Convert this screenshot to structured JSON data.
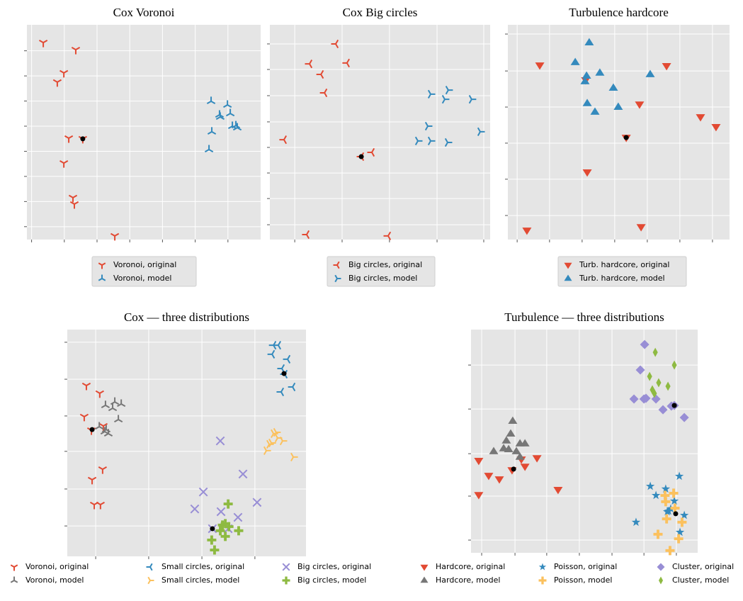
{
  "chart_data": [
    {
      "type": "scatter",
      "title": "Cox Voronoi",
      "xlim": [
        0,
        100
      ],
      "ylim": [
        0,
        100
      ],
      "xticks": [
        2,
        16,
        30,
        44,
        58,
        72,
        86
      ],
      "yticks": [
        6,
        17.7,
        29.4,
        41.1,
        52.8,
        64.5,
        76.2,
        87.9
      ],
      "grid": true,
      "legend": "below",
      "series": [
        {
          "name": "Voronoi, original",
          "color": "#E24A33",
          "marker": "tri_down",
          "x": [
            7.0,
            20.9,
            15.8,
            13.0,
            17.9,
            23.9,
            15.8,
            19.7,
            20.3,
            37.6
          ],
          "y": [
            91.7,
            88.4,
            77.6,
            73.3,
            47.2,
            46.9,
            35.6,
            19.5,
            16.5,
            1.7
          ]
        },
        {
          "name": "Voronoi, model",
          "color": "#348ABD",
          "marker": "tri_up",
          "x": [
            78.8,
            85.8,
            82.4,
            87.0,
            82.7,
            87.9,
            90.0,
            79.1,
            77.9,
            89.4
          ],
          "y": [
            64.4,
            62.7,
            58.1,
            58.7,
            57.1,
            52.8,
            52.1,
            50.2,
            41.9,
            53.1
          ]
        }
      ],
      "highlight": {
        "color": "#000000",
        "x": [
          23.9
        ],
        "y": [
          46.9
        ]
      }
    },
    {
      "type": "scatter",
      "title": "Cox Big circles",
      "xlim": [
        0,
        100
      ],
      "ylim": [
        0,
        100
      ],
      "xticks": [
        11.3,
        32.8,
        54.3,
        75.9,
        97.1
      ],
      "yticks": [
        6.9,
        19.1,
        31.0,
        42.9,
        54.8,
        67.0,
        79.2,
        91.1
      ],
      "grid": true,
      "legend": "below",
      "series": [
        {
          "name": "Big circles, original",
          "color": "#E24A33",
          "marker": "tri_left",
          "x": [
            29.9,
            18.0,
            23.2,
            35.0,
            24.8,
            6.4,
            46.3,
            41.5,
            16.7,
            53.7
          ],
          "y": [
            91.1,
            81.8,
            76.9,
            82.2,
            68.3,
            46.5,
            40.6,
            38.6,
            2.3,
            1.7
          ]
        },
        {
          "name": "Big circles, model",
          "color": "#348ABD",
          "marker": "tri_right",
          "x": [
            73.0,
            81.0,
            79.4,
            91.6,
            71.7,
            95.5,
            67.2,
            73.0,
            80.7
          ],
          "y": [
            67.7,
            69.6,
            65.3,
            65.3,
            52.8,
            50.2,
            45.9,
            45.9,
            45.2
          ]
        }
      ],
      "highlight": {
        "color": "#000000",
        "x": [
          41.5
        ],
        "y": [
          38.6
        ]
      }
    },
    {
      "type": "scatter",
      "title": "Turbulence hardcore",
      "xlim": [
        0,
        100
      ],
      "ylim": [
        0,
        100
      ],
      "xticks": [
        4.2,
        18.8,
        33.5,
        48.2,
        62.9,
        77.6,
        92.3
      ],
      "yticks": [
        11.2,
        28.1,
        44.9,
        61.7,
        78.5,
        95.7
      ],
      "grid": true,
      "legend": "below",
      "series": [
        {
          "name": "Turb. hardcore, original",
          "color": "#E24A33",
          "marker": "triangle_down",
          "x": [
            14.4,
            35.1,
            71.6,
            59.4,
            86.9,
            93.9,
            53.4,
            35.8,
            60.1,
            8.6
          ],
          "y": [
            81.2,
            74.3,
            80.9,
            63.0,
            57.1,
            52.5,
            47.5,
            31.4,
            5.9,
            4.3
          ]
        },
        {
          "name": "Turb. hardcore, model",
          "color": "#348ABD",
          "marker": "triangle_up",
          "x": [
            36.7,
            30.4,
            35.5,
            41.5,
            64.2,
            34.8,
            47.6,
            35.8,
            39.3,
            49.8
          ],
          "y": [
            91.7,
            82.5,
            76.2,
            77.6,
            76.9,
            73.6,
            70.6,
            63.4,
            59.4,
            61.7
          ]
        }
      ],
      "highlight": {
        "color": "#000000",
        "x": [
          53.4
        ],
        "y": [
          47.5
        ]
      }
    },
    {
      "type": "scatter",
      "title": "Cox — three distributions",
      "xlim": [
        0,
        100
      ],
      "ylim": [
        0,
        100
      ],
      "xticks": [
        11.9,
        34.1,
        56.4,
        78.6
      ],
      "yticks": [
        13.4,
        29.7,
        46.3,
        61.9,
        78.1,
        94.4
      ],
      "grid": true,
      "legend": "below",
      "series": [
        {
          "name": "Voronoi, original",
          "color": "#E24A33",
          "marker": "tri_down",
          "x": [
            8.0,
            13.6,
            7.1,
            10.1,
            15.1,
            14.8,
            10.4,
            11.3,
            13.9
          ],
          "y": [
            75.3,
            71.9,
            61.6,
            55.6,
            57.5,
            38.4,
            33.8,
            22.8,
            22.8
          ]
        },
        {
          "name": "Voronoi, model",
          "color": "#777777",
          "marker": "tri_up",
          "x": [
            16.0,
            19.9,
            22.6,
            19.0,
            21.4,
            16.3,
            17.2,
            13.4,
            15.7
          ],
          "y": [
            66.6,
            68.1,
            67.2,
            65.3,
            60.3,
            55.9,
            54.1,
            57.2,
            55.0
          ]
        },
        {
          "name": "Small circles, original",
          "color": "#348ABD",
          "marker": "tri_left",
          "x": [
            86.4,
            88.4,
            85.8,
            92.3,
            91.1,
            89.6,
            94.4,
            89.9
          ],
          "y": [
            93.1,
            93.1,
            89.1,
            86.9,
            80.3,
            72.5,
            74.7,
            82.8
          ]
        },
        {
          "name": "Small circles, model",
          "color": "#FBC15E",
          "marker": "tri_right",
          "x": [
            86.4,
            88.1,
            90.2,
            83.4,
            84.6,
            94.7,
            85.5,
            87.5
          ],
          "y": [
            54.1,
            52.2,
            50.9,
            46.6,
            49.4,
            43.8,
            50.0,
            54.7
          ]
        },
        {
          "name": "Big circles, original",
          "color": "#988ED5",
          "marker": "x",
          "x": [
            64.1,
            73.6,
            57.0,
            79.5,
            53.4,
            64.4,
            71.5,
            67.4,
            60.8
          ],
          "y": [
            50.9,
            36.3,
            28.4,
            23.8,
            20.9,
            19.7,
            17.2,
            12.2,
            12.2
          ]
        },
        {
          "name": "Big circles, model",
          "color": "#8EBA42",
          "marker": "plus",
          "x": [
            67.4,
            65.0,
            66.2,
            67.7,
            64.1,
            71.8,
            60.5,
            66.2,
            61.7
          ],
          "y": [
            23.1,
            13.8,
            14.4,
            13.1,
            11.3,
            11.3,
            7.2,
            8.8,
            2.8
          ]
        }
      ],
      "highlight": {
        "color": "#000000",
        "x": [
          10.4,
          90.8,
          60.8
        ],
        "y": [
          55.9,
          80.6,
          12.2
        ]
      }
    },
    {
      "type": "scatter",
      "title": "Turbulence — three distributions",
      "xlim": [
        0,
        100
      ],
      "ylim": [
        0,
        100
      ],
      "xticks": [
        4.7,
        19.4,
        33.4,
        47.8,
        62.2,
        76.3,
        90.6
      ],
      "yticks": [
        5.7,
        25.4,
        44.4,
        64.4,
        84.1
      ],
      "grid": true,
      "legend": "below",
      "series": [
        {
          "name": "Hardcore, original",
          "color": "#E24A33",
          "marker": "triangle_down",
          "x": [
            3.4,
            7.8,
            12.5,
            18.1,
            23.8,
            29.1,
            3.4,
            38.4,
            22.2
          ],
          "y": [
            41.3,
            34.6,
            33.0,
            37.1,
            38.7,
            42.5,
            26.0,
            28.3,
            41.9
          ]
        },
        {
          "name": "Hardcore, model",
          "color": "#777777",
          "marker": "triangle_up",
          "x": [
            18.4,
            17.5,
            15.6,
            21.6,
            23.8,
            10.0,
            14.4,
            20.0,
            21.6,
            16.6
          ],
          "y": [
            59.0,
            53.3,
            50.2,
            48.9,
            48.9,
            45.4,
            46.7,
            45.4,
            42.9,
            46.3
          ]
        },
        {
          "name": "Poisson, original",
          "color": "#348ABD",
          "marker": "star",
          "x": [
            91.9,
            79.1,
            85.9,
            81.6,
            89.7,
            86.6,
            94.1,
            87.2,
            72.8,
            92.2,
            88.1
          ],
          "y": [
            34.3,
            29.8,
            28.6,
            25.7,
            23.2,
            18.4,
            16.8,
            18.7,
            13.7,
            9.2,
            19.7
          ]
        },
        {
          "name": "Poisson, model",
          "color": "#FBC15E",
          "marker": "plus",
          "x": [
            89.4,
            85.6,
            85.9,
            86.3,
            93.1,
            82.5,
            91.6,
            87.8,
            90.0
          ],
          "y": [
            26.7,
            25.7,
            22.9,
            15.2,
            13.7,
            8.3,
            6.3,
            1.0,
            20.0
          ]
        },
        {
          "name": "Cluster, original",
          "color": "#988ED5",
          "marker": "diamond",
          "x": [
            76.6,
            74.7,
            76.3,
            71.9,
            77.2,
            81.6,
            88.4,
            84.7,
            94.1,
            89.7
          ],
          "y": [
            93.3,
            81.9,
            68.9,
            68.9,
            69.2,
            68.9,
            65.7,
            64.1,
            60.6,
            66.0
          ]
        },
        {
          "name": "Cluster, model",
          "color": "#8EBA42",
          "marker": "thin_diamond",
          "x": [
            81.3,
            89.7,
            78.8,
            82.8,
            86.9,
            80.0,
            80.9
          ],
          "y": [
            89.8,
            84.1,
            79.0,
            76.2,
            74.6,
            73.0,
            71.4
          ]
        }
      ],
      "highlight": {
        "color": "#000000",
        "x": [
          18.8,
          90.3,
          89.7
        ],
        "y": [
          37.5,
          17.5,
          66.0
        ]
      }
    }
  ]
}
